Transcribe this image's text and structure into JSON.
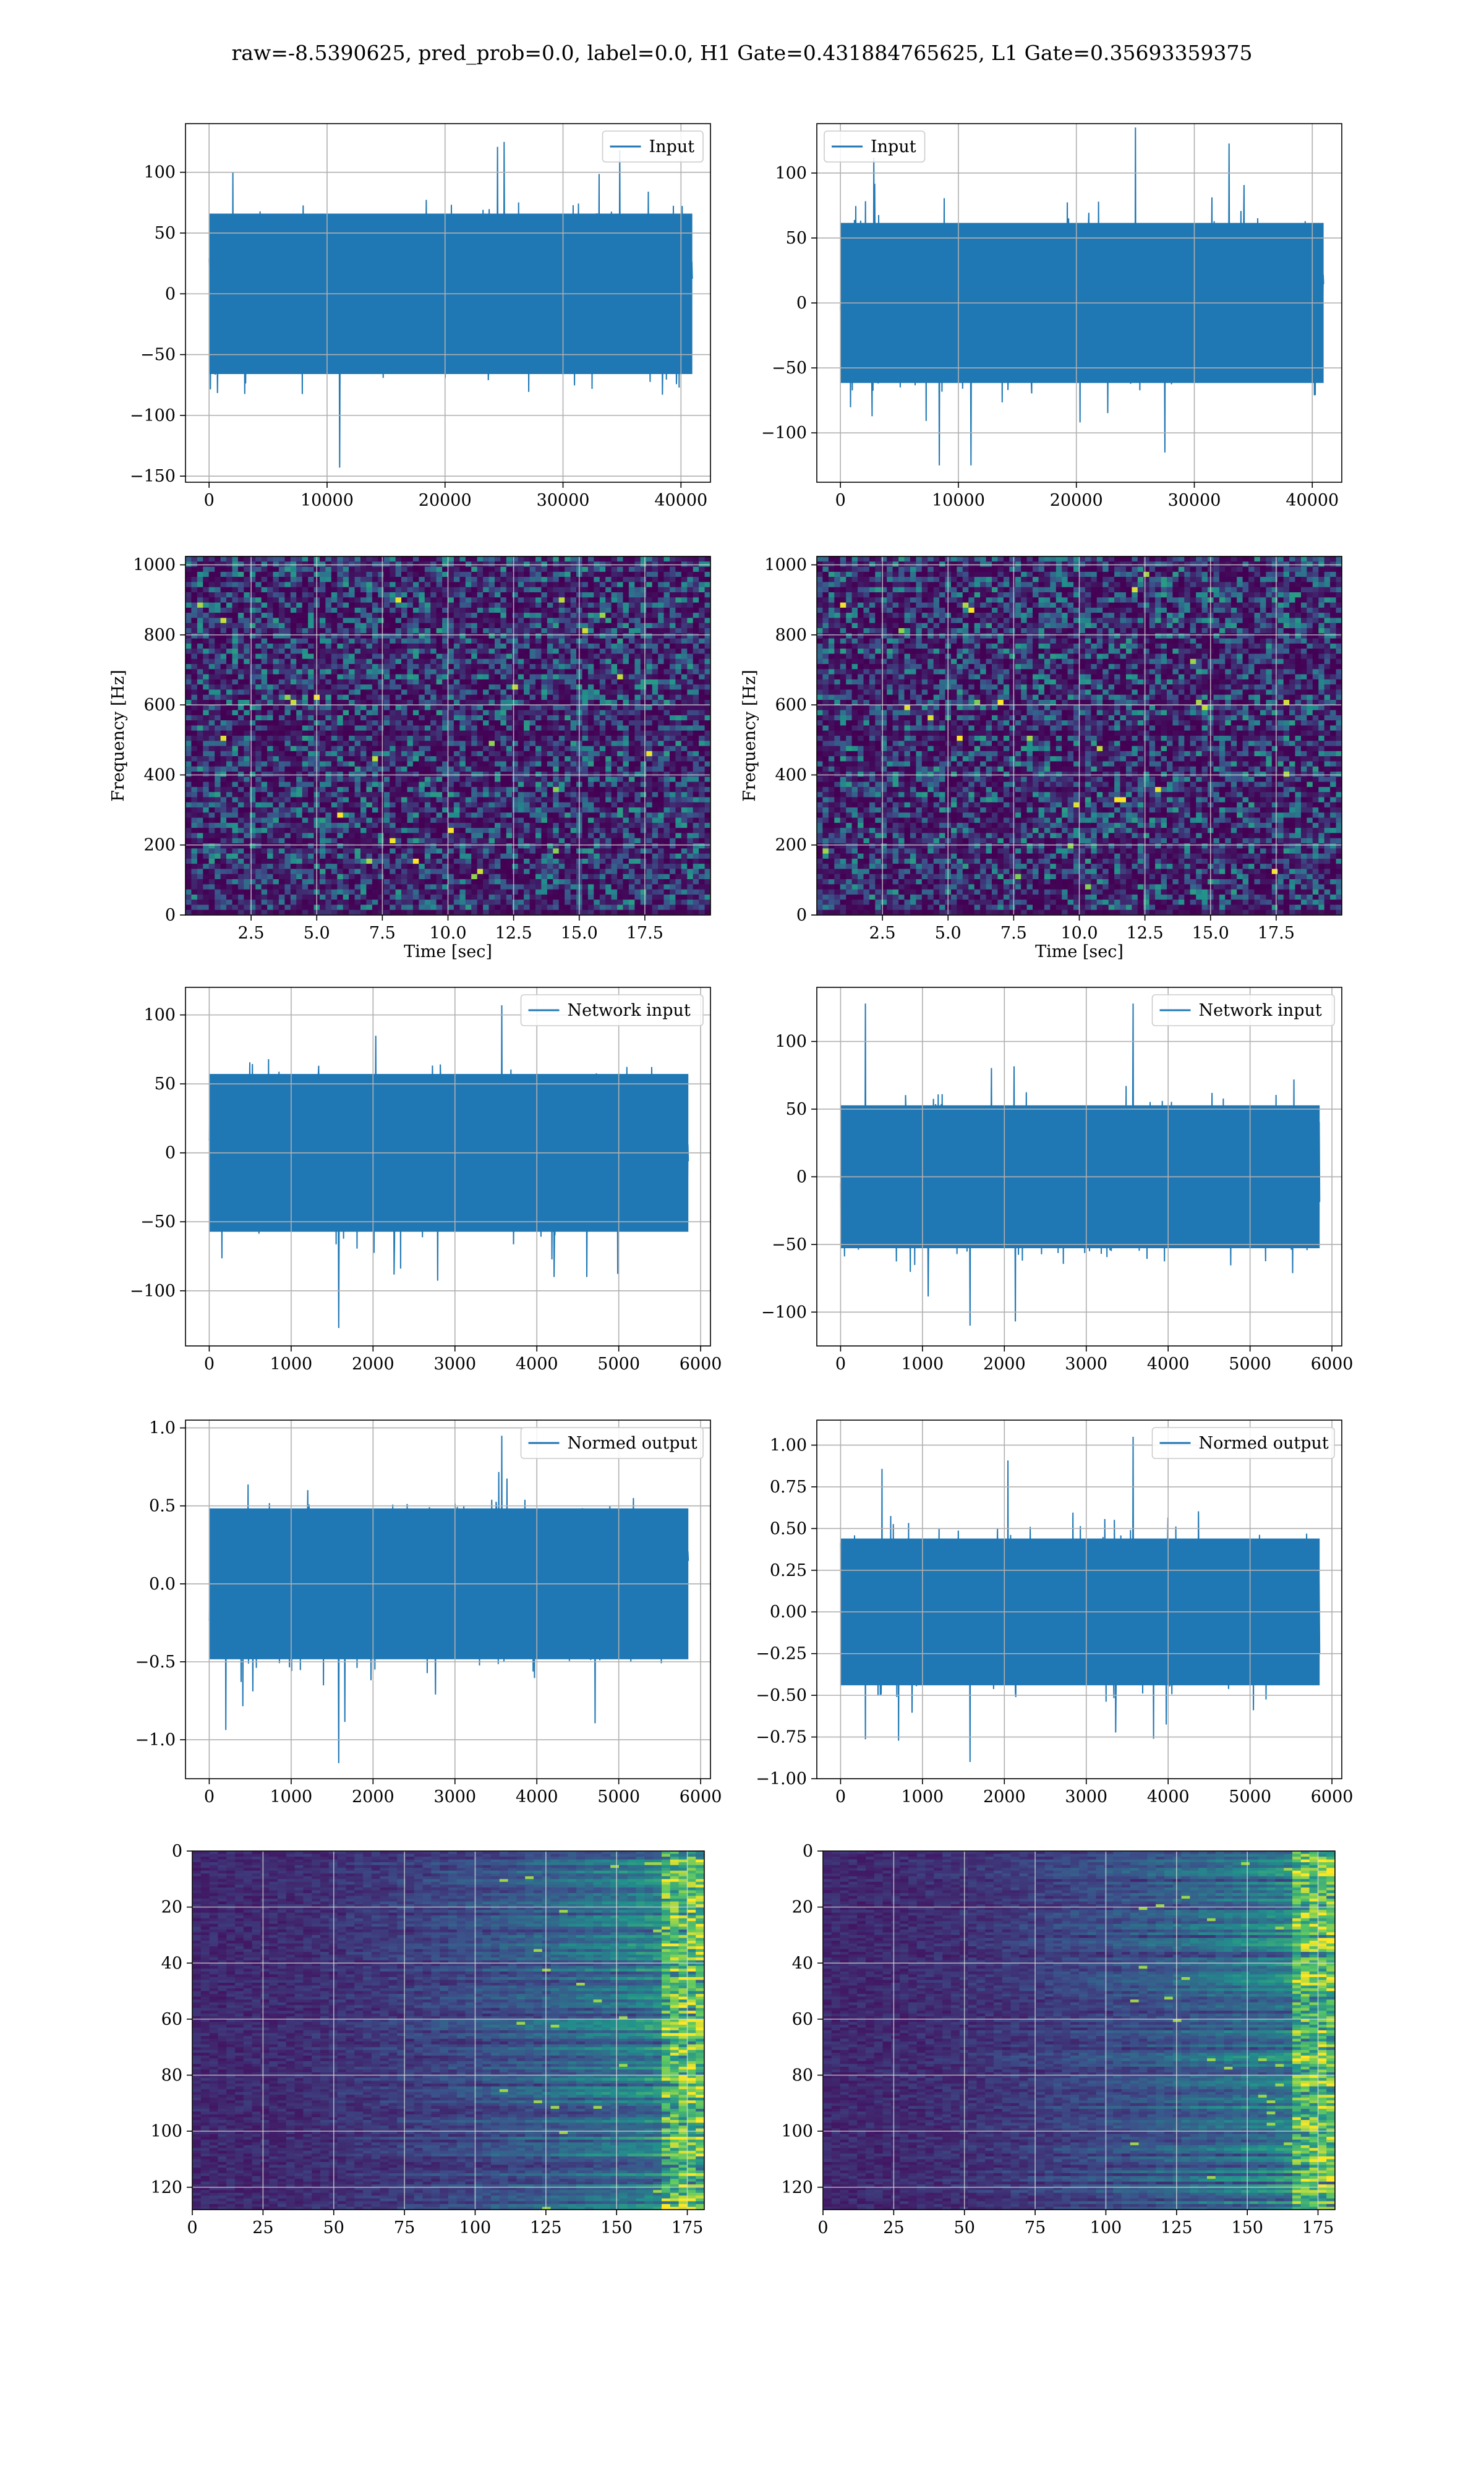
{
  "figure": {
    "suptitle": "raw=-8.5390625, pred_prob=0.0, label=0.0, H1 Gate=0.431884765625, L1 Gate=0.35693359375",
    "line_color": "#1f77b4",
    "colormap": [
      "#440154",
      "#3b528b",
      "#21918c",
      "#5ec962",
      "#fde725"
    ]
  },
  "chart_data": [
    {
      "id": "h1-input",
      "type": "line",
      "legend": [
        "Input"
      ],
      "legend_loc": "upper right",
      "xlim": [
        -2000,
        42500
      ],
      "ylim": [
        -155,
        140
      ],
      "xticks": [
        0,
        10000,
        20000,
        30000,
        40000
      ],
      "xtick_labels": [
        "0",
        "10000",
        "20000",
        "30000",
        "40000"
      ],
      "yticks": [
        -150,
        -100,
        -50,
        0,
        50,
        100
      ],
      "ytick_labels": [
        "−150",
        "−100",
        "−50",
        "0",
        "50",
        "100"
      ],
      "x_range": [
        0,
        40960
      ],
      "noise_std": 30,
      "min": -143,
      "max": 125,
      "grid": true
    },
    {
      "id": "l1-input",
      "type": "line",
      "legend": [
        "Input"
      ],
      "legend_loc": "upper left",
      "xlim": [
        -2000,
        42500
      ],
      "ylim": [
        -138,
        138
      ],
      "xticks": [
        0,
        10000,
        20000,
        30000,
        40000
      ],
      "xtick_labels": [
        "0",
        "10000",
        "20000",
        "30000",
        "40000"
      ],
      "yticks": [
        -100,
        -50,
        0,
        50,
        100
      ],
      "ytick_labels": [
        "−100",
        "−50",
        "0",
        "50",
        "100"
      ],
      "x_range": [
        0,
        40960
      ],
      "noise_std": 28,
      "min": -125,
      "max": 135,
      "grid": true
    },
    {
      "id": "h1-spectrogram",
      "type": "heatmap",
      "xlabel": "Time [sec]",
      "ylabel": "Frequency [Hz]",
      "xlim": [
        0,
        20
      ],
      "ylim": [
        0,
        1024
      ],
      "xticks": [
        2.5,
        5.0,
        7.5,
        10.0,
        12.5,
        15.0,
        17.5
      ],
      "xtick_labels": [
        "2.5",
        "5.0",
        "7.5",
        "10.0",
        "12.5",
        "15.0",
        "17.5"
      ],
      "yticks": [
        0,
        200,
        400,
        600,
        800,
        1000
      ],
      "ytick_labels": [
        "0",
        "200",
        "400",
        "600",
        "800",
        "1000"
      ],
      "grid": true
    },
    {
      "id": "l1-spectrogram",
      "type": "heatmap",
      "xlabel": "Time [sec]",
      "ylabel": "Frequency [Hz]",
      "xlim": [
        0,
        20
      ],
      "ylim": [
        0,
        1024
      ],
      "xticks": [
        2.5,
        5.0,
        7.5,
        10.0,
        12.5,
        15.0,
        17.5
      ],
      "xtick_labels": [
        "2.5",
        "5.0",
        "7.5",
        "10.0",
        "12.5",
        "15.0",
        "17.5"
      ],
      "yticks": [
        0,
        200,
        400,
        600,
        800,
        1000
      ],
      "ytick_labels": [
        "0",
        "200",
        "400",
        "600",
        "800",
        "1000"
      ],
      "grid": true
    },
    {
      "id": "h1-network-input",
      "type": "line",
      "legend": [
        "Network input"
      ],
      "legend_loc": "upper right",
      "xlim": [
        -290,
        6120
      ],
      "ylim": [
        -140,
        120
      ],
      "xticks": [
        0,
        1000,
        2000,
        3000,
        4000,
        5000,
        6000
      ],
      "xtick_labels": [
        "0",
        "1000",
        "2000",
        "3000",
        "4000",
        "5000",
        "6000"
      ],
      "yticks": [
        -100,
        -50,
        0,
        50,
        100
      ],
      "ytick_labels": [
        "−100",
        "−50",
        "0",
        "50",
        "100"
      ],
      "x_range": [
        0,
        5850
      ],
      "noise_std": 26,
      "min": -127,
      "max": 107,
      "grid": true
    },
    {
      "id": "l1-network-input",
      "type": "line",
      "legend": [
        "Network input"
      ],
      "legend_loc": "upper right",
      "xlim": [
        -290,
        6120
      ],
      "ylim": [
        -125,
        140
      ],
      "xticks": [
        0,
        1000,
        2000,
        3000,
        4000,
        5000,
        6000
      ],
      "xtick_labels": [
        "0",
        "1000",
        "2000",
        "3000",
        "4000",
        "5000",
        "6000"
      ],
      "yticks": [
        -100,
        -50,
        0,
        50,
        100
      ],
      "ytick_labels": [
        "−100",
        "−50",
        "0",
        "50",
        "100"
      ],
      "x_range": [
        0,
        5850
      ],
      "noise_std": 24,
      "min": -110,
      "max": 128,
      "grid": true
    },
    {
      "id": "h1-normed-output",
      "type": "line",
      "legend": [
        "Normed output"
      ],
      "legend_loc": "upper right",
      "xlim": [
        -290,
        6120
      ],
      "ylim": [
        -1.25,
        1.05
      ],
      "xticks": [
        0,
        1000,
        2000,
        3000,
        4000,
        5000,
        6000
      ],
      "xtick_labels": [
        "0",
        "1000",
        "2000",
        "3000",
        "4000",
        "5000",
        "6000"
      ],
      "yticks": [
        -1.0,
        -0.5,
        0.0,
        0.5,
        1.0
      ],
      "ytick_labels": [
        "−1.0",
        "−0.5",
        "0.0",
        "0.5",
        "1.0"
      ],
      "x_range": [
        0,
        5850
      ],
      "noise_std": 0.22,
      "min": -1.15,
      "max": 0.95,
      "grid": true
    },
    {
      "id": "l1-normed-output",
      "type": "line",
      "legend": [
        "Normed output"
      ],
      "legend_loc": "upper right",
      "xlim": [
        -290,
        6120
      ],
      "ylim": [
        -1.0,
        1.15
      ],
      "xticks": [
        0,
        1000,
        2000,
        3000,
        4000,
        5000,
        6000
      ],
      "xtick_labels": [
        "0",
        "1000",
        "2000",
        "3000",
        "4000",
        "5000",
        "6000"
      ],
      "yticks": [
        -1.0,
        -0.75,
        -0.5,
        -0.25,
        0.0,
        0.25,
        0.5,
        0.75,
        1.0
      ],
      "ytick_labels": [
        "−1.00",
        "−0.75",
        "−0.50",
        "−0.25",
        "0.00",
        "0.25",
        "0.50",
        "0.75",
        "1.00"
      ],
      "x_range": [
        0,
        5850
      ],
      "noise_std": 0.2,
      "min": -0.9,
      "max": 1.05,
      "grid": true
    },
    {
      "id": "h1-feature-map",
      "type": "heatmap",
      "xlim": [
        0,
        181
      ],
      "ylim": [
        128,
        0
      ],
      "y_inverted": true,
      "xticks": [
        0,
        25,
        50,
        75,
        100,
        125,
        150,
        175
      ],
      "xtick_labels": [
        "0",
        "25",
        "50",
        "75",
        "100",
        "125",
        "150",
        "175"
      ],
      "yticks": [
        0,
        20,
        40,
        60,
        80,
        100,
        120
      ],
      "ytick_labels": [
        "0",
        "20",
        "40",
        "60",
        "80",
        "100",
        "120"
      ],
      "rows": 128,
      "cols": 181,
      "grid": true
    },
    {
      "id": "l1-feature-map",
      "type": "heatmap",
      "xlim": [
        0,
        181
      ],
      "ylim": [
        128,
        0
      ],
      "y_inverted": true,
      "xticks": [
        0,
        25,
        50,
        75,
        100,
        125,
        150,
        175
      ],
      "xtick_labels": [
        "0",
        "25",
        "50",
        "75",
        "100",
        "125",
        "150",
        "175"
      ],
      "yticks": [
        0,
        20,
        40,
        60,
        80,
        100,
        120
      ],
      "ytick_labels": [
        "0",
        "20",
        "40",
        "60",
        "80",
        "100",
        "120"
      ],
      "rows": 128,
      "cols": 181,
      "grid": true
    }
  ]
}
